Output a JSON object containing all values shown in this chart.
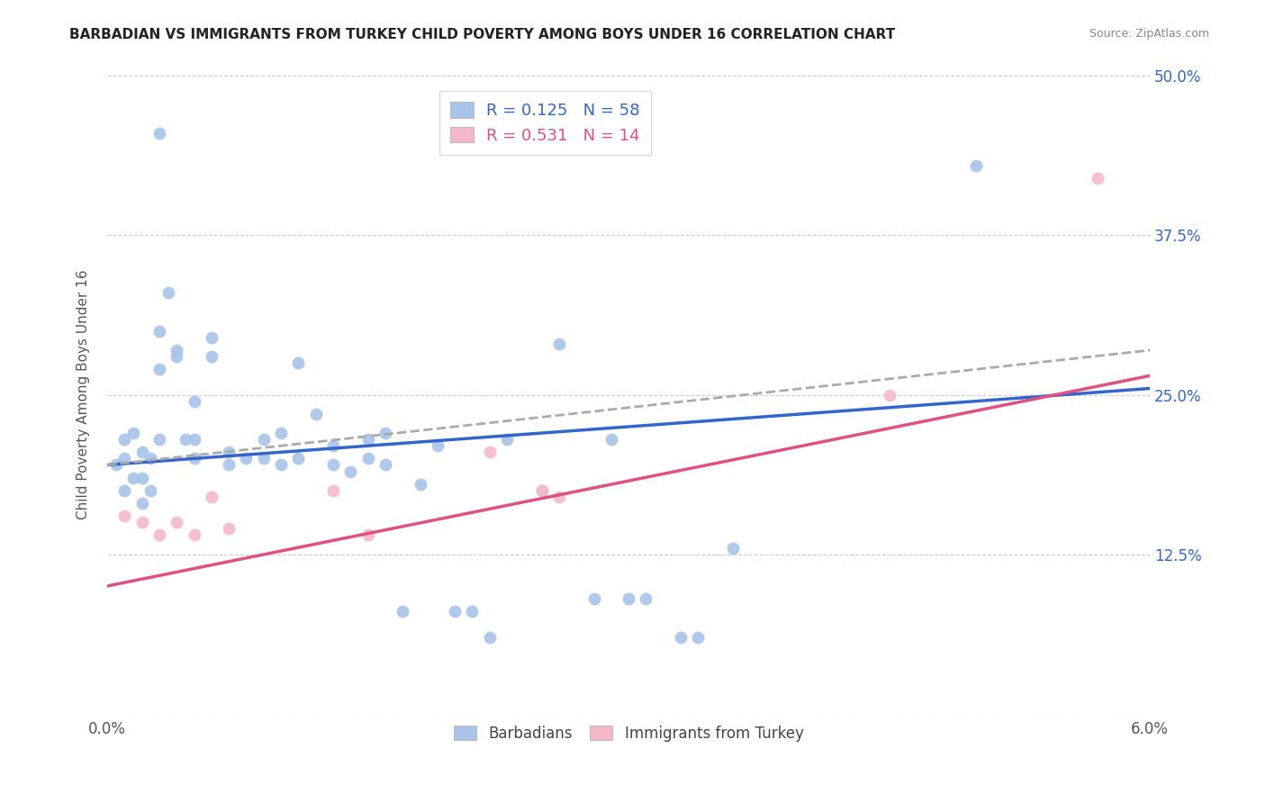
{
  "title": "BARBADIAN VS IMMIGRANTS FROM TURKEY CHILD POVERTY AMONG BOYS UNDER 16 CORRELATION CHART",
  "source": "Source: ZipAtlas.com",
  "ylabel": "Child Poverty Among Boys Under 16",
  "xlim": [
    0.0,
    0.06
  ],
  "ylim": [
    0.0,
    0.5
  ],
  "xticks": [
    0.0,
    0.01,
    0.02,
    0.03,
    0.04,
    0.05,
    0.06
  ],
  "xticklabels": [
    "0.0%",
    "",
    "",
    "",
    "",
    "",
    "6.0%"
  ],
  "yticks": [
    0.0,
    0.125,
    0.25,
    0.375,
    0.5
  ],
  "yticklabels_right": [
    "",
    "12.5%",
    "25.0%",
    "37.5%",
    "50.0%"
  ],
  "barbadian_R": "0.125",
  "barbadian_N": "58",
  "turkey_R": "0.531",
  "turkey_N": "14",
  "blue_color": "#a8c4e8",
  "pink_color": "#f5b8c8",
  "blue_line_color": "#3366cc",
  "pink_line_color": "#e05080",
  "dashed_line_color": "#aaaaaa",
  "legend_text_blue": "#3366cc",
  "legend_text_pink": "#e05080",
  "barbadian_x": [
    0.0005,
    0.001,
    0.001,
    0.001,
    0.0015,
    0.0015,
    0.002,
    0.002,
    0.002,
    0.0025,
    0.0025,
    0.003,
    0.003,
    0.003,
    0.003,
    0.0035,
    0.004,
    0.004,
    0.0045,
    0.005,
    0.005,
    0.005,
    0.006,
    0.006,
    0.007,
    0.007,
    0.008,
    0.009,
    0.009,
    0.01,
    0.01,
    0.011,
    0.011,
    0.012,
    0.013,
    0.013,
    0.014,
    0.015,
    0.015,
    0.016,
    0.016,
    0.017,
    0.018,
    0.019,
    0.02,
    0.021,
    0.022,
    0.023,
    0.025,
    0.026,
    0.028,
    0.029,
    0.03,
    0.031,
    0.033,
    0.034,
    0.036,
    0.05
  ],
  "barbadian_y": [
    0.195,
    0.215,
    0.2,
    0.175,
    0.22,
    0.185,
    0.205,
    0.185,
    0.165,
    0.2,
    0.175,
    0.455,
    0.3,
    0.27,
    0.215,
    0.33,
    0.285,
    0.28,
    0.215,
    0.245,
    0.215,
    0.2,
    0.295,
    0.28,
    0.205,
    0.195,
    0.2,
    0.215,
    0.2,
    0.22,
    0.195,
    0.275,
    0.2,
    0.235,
    0.21,
    0.195,
    0.19,
    0.215,
    0.2,
    0.22,
    0.195,
    0.08,
    0.18,
    0.21,
    0.08,
    0.08,
    0.06,
    0.215,
    0.175,
    0.29,
    0.09,
    0.215,
    0.09,
    0.09,
    0.06,
    0.06,
    0.13,
    0.43
  ],
  "turkey_x": [
    0.001,
    0.002,
    0.003,
    0.004,
    0.005,
    0.006,
    0.007,
    0.013,
    0.015,
    0.022,
    0.025,
    0.026,
    0.045,
    0.057
  ],
  "turkey_y": [
    0.155,
    0.15,
    0.14,
    0.15,
    0.14,
    0.17,
    0.145,
    0.175,
    0.14,
    0.205,
    0.175,
    0.17,
    0.25,
    0.42
  ],
  "blue_trendline_x": [
    0.0,
    0.06
  ],
  "blue_trendline_y": [
    0.195,
    0.255
  ],
  "dashed_trendline_x": [
    0.0,
    0.06
  ],
  "dashed_trendline_y": [
    0.195,
    0.285
  ],
  "pink_trendline_x": [
    0.0,
    0.06
  ],
  "pink_trendline_y": [
    0.1,
    0.265
  ]
}
